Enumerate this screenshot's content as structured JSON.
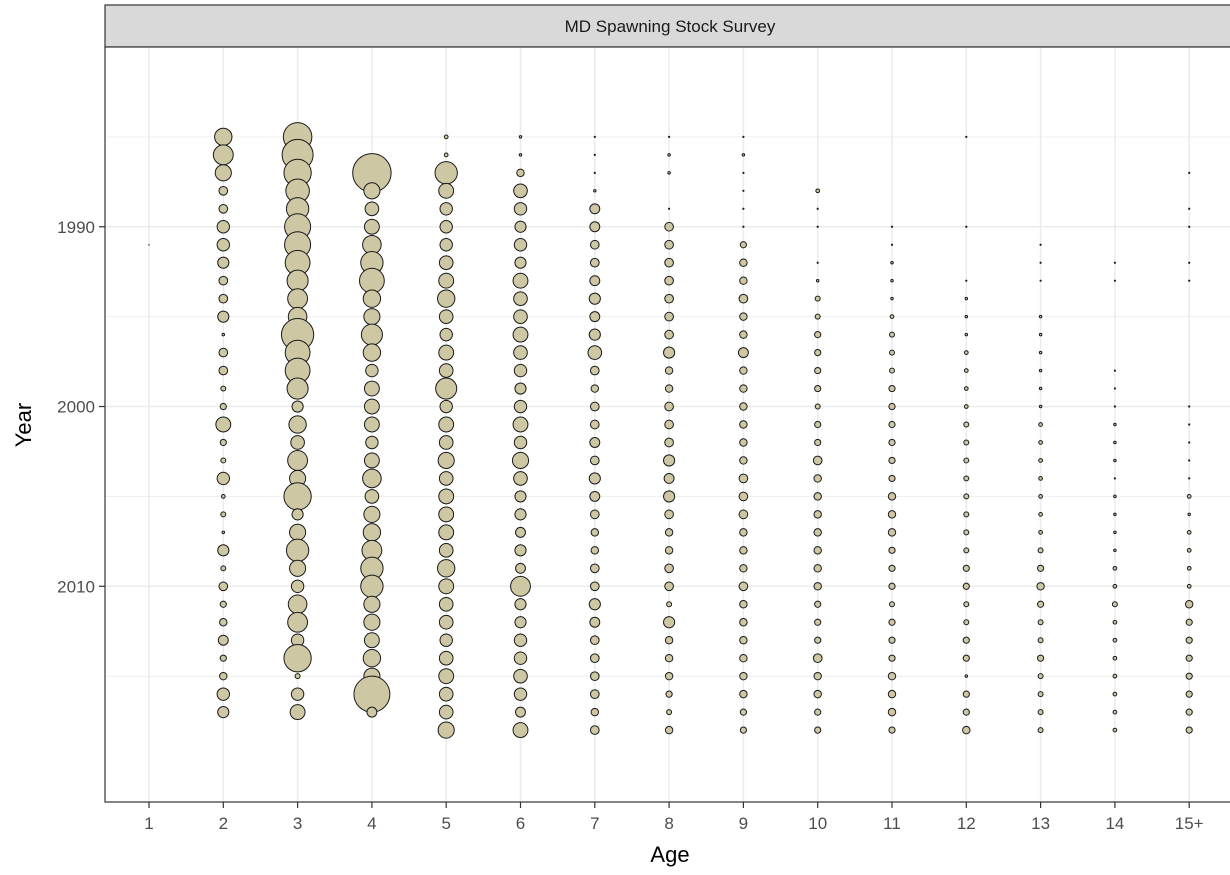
{
  "chart_data": {
    "type": "scatter",
    "subtype": "bubble",
    "facet_title": "MD Spawning Stock Survey",
    "xlabel": "Age",
    "ylabel": "Year",
    "x_categories": [
      "1",
      "2",
      "3",
      "4",
      "5",
      "6",
      "7",
      "8",
      "9",
      "10",
      "11",
      "12",
      "13",
      "14",
      "15+"
    ],
    "y_ticks": [
      1990,
      2000,
      2010
    ],
    "y_reversed": true,
    "ylim": [
      1980,
      2022
    ],
    "grid": true,
    "legend": "none",
    "colors": {
      "fill": "#cdc7a3",
      "stroke": "#1a1a1a",
      "strip_bg": "#d9d9d9",
      "grid": "#ebebeb"
    },
    "years": [
      1985,
      1986,
      1987,
      1988,
      1989,
      1990,
      1991,
      1992,
      1993,
      1994,
      1995,
      1996,
      1997,
      1998,
      1999,
      2000,
      2001,
      2002,
      2003,
      2004,
      2005,
      2006,
      2007,
      2008,
      2009,
      2010,
      2011,
      2012,
      2013,
      2014,
      2015,
      2016,
      2017,
      2018
    ],
    "series": [
      {
        "age": "1",
        "values": [
          0,
          0,
          0,
          0,
          0,
          0,
          0.4,
          0,
          0,
          0,
          0,
          0,
          0,
          0,
          0,
          0,
          0,
          0,
          0,
          0,
          0,
          0,
          0,
          0,
          0,
          0,
          0,
          0,
          0,
          0,
          0,
          0,
          0,
          0
        ]
      },
      {
        "age": "2",
        "values": [
          14,
          16,
          13,
          7,
          7,
          10,
          10,
          9,
          7,
          7,
          9,
          2,
          7,
          7,
          4,
          5,
          12,
          5,
          4,
          10,
          3,
          4,
          2,
          9,
          4,
          7,
          5,
          6,
          8,
          5,
          6,
          10,
          9,
          0
        ]
      },
      {
        "age": "3",
        "values": [
          23,
          25,
          22,
          19,
          18,
          21,
          21,
          20,
          17,
          16,
          15,
          26,
          20,
          20,
          17,
          9,
          14,
          11,
          16,
          13,
          22,
          9,
          13,
          18,
          13,
          10,
          15,
          16,
          10,
          22,
          4,
          10,
          12,
          0
        ]
      },
      {
        "age": "4",
        "values": [
          0,
          0,
          31,
          13,
          11,
          12,
          15,
          18,
          20,
          14,
          13,
          17,
          14,
          10,
          12,
          12,
          12,
          10,
          12,
          15,
          11,
          13,
          14,
          16,
          18,
          18,
          13,
          13,
          12,
          14,
          13,
          29,
          8,
          0
        ]
      },
      {
        "age": "5",
        "values": [
          3,
          3,
          18,
          12,
          10,
          10,
          10,
          11,
          12,
          14,
          11,
          10,
          12,
          11,
          17,
          10,
          12,
          11,
          13,
          11,
          12,
          12,
          12,
          11,
          14,
          12,
          11,
          11,
          10,
          11,
          12,
          11,
          11,
          13
        ]
      },
      {
        "age": "6",
        "values": [
          2,
          2,
          6,
          11,
          10,
          9,
          10,
          9,
          12,
          11,
          11,
          12,
          11,
          10,
          9,
          10,
          12,
          10,
          13,
          11,
          9,
          9,
          8,
          9,
          8,
          16,
          9,
          9,
          10,
          10,
          11,
          10,
          8,
          12
        ]
      },
      {
        "age": "7",
        "values": [
          1,
          1,
          1,
          2,
          8,
          8,
          7,
          7,
          8,
          9,
          8,
          9,
          11,
          7,
          6,
          7,
          7,
          8,
          7,
          9,
          8,
          7,
          6,
          6,
          7,
          7,
          9,
          8,
          7,
          7,
          7,
          7,
          6,
          7
        ]
      },
      {
        "age": "8",
        "values": [
          1,
          2,
          2,
          0,
          1,
          7,
          7,
          7,
          7,
          7,
          7,
          7,
          9,
          6,
          6,
          7,
          7,
          7,
          9,
          8,
          9,
          7,
          6,
          6,
          7,
          7,
          4,
          9,
          6,
          6,
          6,
          5,
          4,
          6
        ]
      },
      {
        "age": "9",
        "values": [
          1,
          2,
          1,
          1,
          1,
          1,
          5,
          6,
          6,
          7,
          6,
          6,
          8,
          6,
          6,
          6,
          6,
          6,
          6,
          7,
          7,
          7,
          6,
          6,
          6,
          7,
          6,
          6,
          6,
          6,
          6,
          6,
          5,
          5
        ]
      },
      {
        "age": "10",
        "values": [
          0,
          0,
          0,
          3,
          1,
          1,
          0,
          1,
          2,
          4,
          4,
          5,
          5,
          5,
          5,
          4,
          5,
          5,
          7,
          6,
          6,
          6,
          6,
          6,
          6,
          6,
          5,
          5,
          5,
          7,
          6,
          6,
          5,
          5
        ]
      },
      {
        "age": "11",
        "values": [
          0,
          0,
          0,
          0,
          0,
          1,
          1,
          2,
          2,
          2,
          3,
          4,
          4,
          4,
          5,
          5,
          5,
          5,
          5,
          5,
          6,
          6,
          6,
          5,
          5,
          5,
          4,
          5,
          5,
          5,
          6,
          6,
          6,
          5
        ]
      },
      {
        "age": "12",
        "values": [
          1,
          0,
          0,
          0,
          0,
          1,
          0,
          0,
          1,
          2,
          2,
          2,
          3,
          3,
          3,
          3,
          4,
          4,
          4,
          4,
          4,
          4,
          4,
          4,
          5,
          5,
          4,
          4,
          5,
          5,
          2,
          5,
          5,
          6
        ]
      },
      {
        "age": "13",
        "values": [
          0,
          0,
          0,
          0,
          0,
          0,
          1,
          1,
          1,
          0,
          2,
          2,
          2,
          2,
          2,
          2,
          3,
          3,
          3,
          3,
          3,
          3,
          3,
          4,
          5,
          6,
          5,
          4,
          4,
          5,
          4,
          4,
          4,
          4
        ]
      },
      {
        "age": "14",
        "values": [
          0,
          0,
          0,
          0,
          0,
          0,
          0,
          1,
          1,
          0,
          0,
          0,
          0,
          1,
          1,
          1,
          2,
          2,
          2,
          1,
          2,
          2,
          2,
          2,
          3,
          3,
          4,
          3,
          3,
          3,
          3,
          3,
          3,
          3
        ]
      },
      {
        "age": "15+",
        "values": [
          0,
          0,
          1,
          0,
          1,
          1,
          0,
          1,
          1,
          0,
          0,
          0,
          0,
          0,
          0,
          1,
          1,
          1,
          1,
          1,
          3,
          2,
          3,
          3,
          3,
          3,
          6,
          5,
          5,
          5,
          5,
          5,
          5,
          5
        ]
      }
    ]
  }
}
